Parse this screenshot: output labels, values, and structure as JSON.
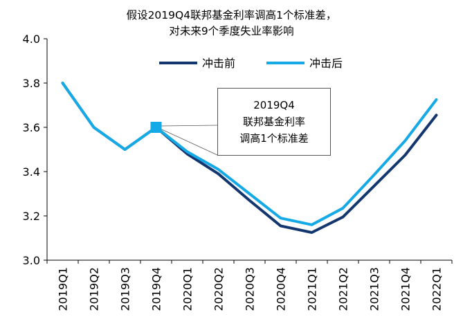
{
  "title_line1": "假设2019Q4联邦基金利率调高1个标准差，",
  "title_line2": "对未来9个季度失业率影响",
  "annotation": {
    "line1": "2019Q4",
    "line2": "联邦基金利率",
    "line3": "调高1个标准差"
  },
  "chart_data": {
    "type": "line",
    "title": "假设2019Q4联邦基金利率调高1个标准差，对未来9个季度失业率影响",
    "categories": [
      "2019Q1",
      "2019Q2",
      "2019Q3",
      "2019Q4",
      "2020Q1",
      "2020Q2",
      "2020Q3",
      "2020Q4",
      "2021Q1",
      "2021Q2",
      "2021Q3",
      "2021Q4",
      "2022Q1"
    ],
    "ylim": [
      3.0,
      4.0
    ],
    "yticks": [
      "3.0",
      "3.2",
      "3.4",
      "3.6",
      "3.8",
      "4.0"
    ],
    "legend_position": "top-right",
    "grid": false,
    "series": [
      {
        "name": "冲击前",
        "color": "#14366e",
        "values": [
          3.8,
          3.6,
          3.5,
          3.6,
          3.48,
          3.39,
          3.27,
          3.155,
          3.125,
          3.195,
          3.335,
          3.475,
          3.655
        ]
      },
      {
        "name": "冲击后",
        "color": "#15a9e6",
        "values": [
          3.8,
          3.6,
          3.5,
          3.6,
          3.49,
          3.41,
          3.3,
          3.19,
          3.16,
          3.235,
          3.385,
          3.54,
          3.725
        ]
      }
    ],
    "marker": {
      "category": "2019Q4",
      "value": 3.6,
      "color": "#15a9e6"
    }
  }
}
